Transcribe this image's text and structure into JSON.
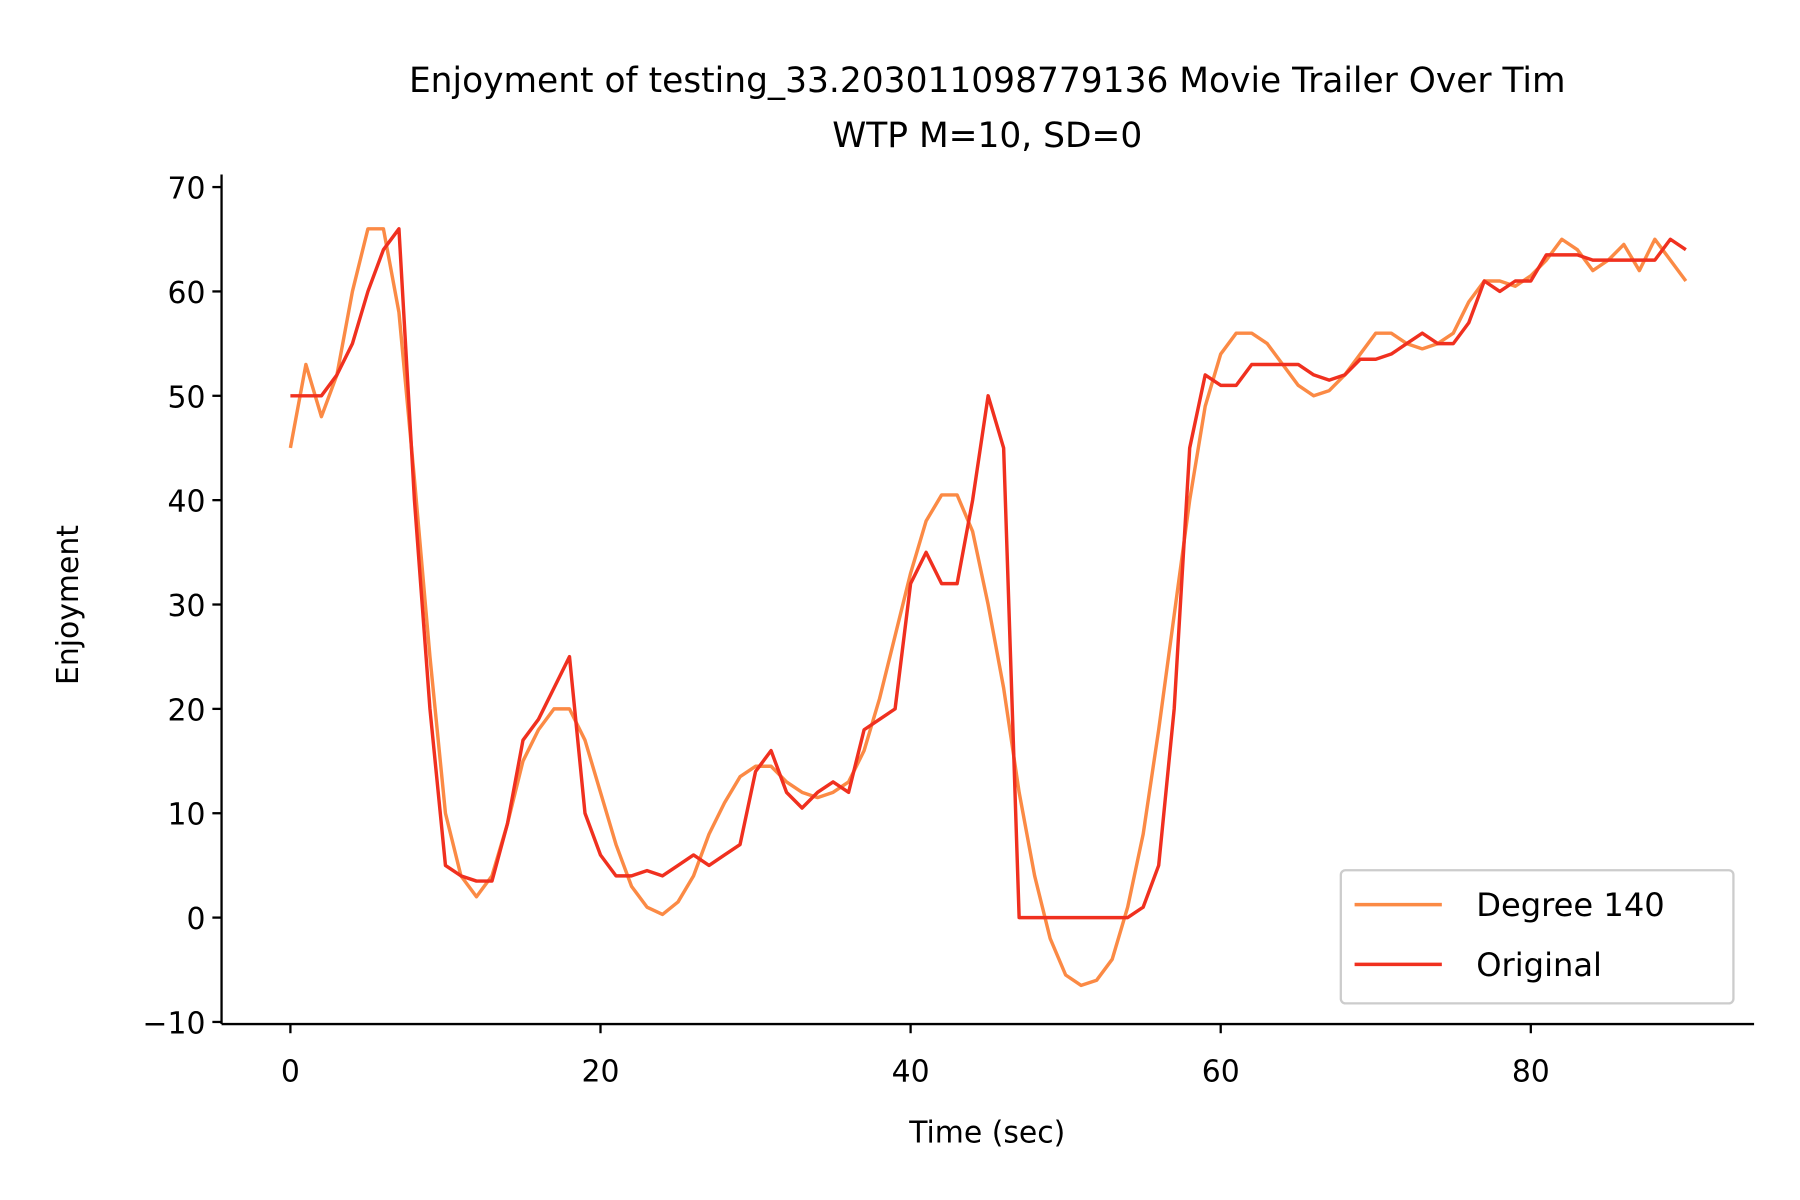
{
  "chart_data": {
    "type": "line",
    "title": "Enjoyment of testing_33.203011098779136 Movie Trailer Over Tim",
    "subtitle": "WTP M=10, SD=0",
    "xlabel": "Time (sec)",
    "ylabel": "Enjoyment",
    "x": [
      0,
      1,
      2,
      3,
      4,
      5,
      6,
      7,
      8,
      9,
      10,
      11,
      12,
      13,
      14,
      15,
      16,
      17,
      18,
      19,
      20,
      21,
      22,
      23,
      24,
      25,
      26,
      27,
      28,
      29,
      30,
      31,
      32,
      33,
      34,
      35,
      36,
      37,
      38,
      39,
      40,
      41,
      42,
      43,
      44,
      45,
      46,
      47,
      48,
      49,
      50,
      51,
      52,
      53,
      54,
      55,
      56,
      57,
      58,
      59,
      60,
      61,
      62,
      63,
      64,
      65,
      66,
      67,
      68,
      69,
      70,
      71,
      72,
      73,
      74,
      75,
      76,
      77,
      78,
      79,
      80,
      81,
      82,
      83,
      84,
      85,
      86,
      87,
      88,
      89,
      90
    ],
    "series": [
      {
        "name": "Degree 140",
        "color": "#fb8a45",
        "values": [
          45,
          53,
          48,
          52,
          60,
          66,
          66,
          58,
          42,
          25,
          10,
          4,
          2,
          4,
          9,
          15,
          18,
          20,
          20,
          17,
          12,
          7,
          3,
          1,
          0.3,
          1.5,
          4,
          8,
          11,
          13.5,
          14.5,
          14.5,
          13,
          12,
          11.5,
          12,
          13,
          16,
          21,
          27,
          33,
          38,
          40.5,
          40.5,
          37,
          30,
          22,
          12,
          4,
          -2,
          -5.5,
          -6.5,
          -6,
          -4,
          1,
          8,
          18,
          29,
          40,
          49,
          54,
          56,
          56,
          55,
          53,
          51,
          50,
          50.5,
          52,
          54,
          56,
          56,
          55,
          54.5,
          55,
          56,
          59,
          61,
          61,
          60.5,
          61.5,
          63,
          65,
          64,
          62,
          63,
          64.5,
          62,
          65,
          63,
          61
        ]
      },
      {
        "name": "Original",
        "color": "#f0301f",
        "values": [
          50,
          50,
          50,
          52,
          55,
          60,
          64,
          66,
          40,
          20,
          5,
          4,
          3.5,
          3.5,
          9,
          17,
          19,
          22,
          25,
          10,
          6,
          4,
          4,
          4.5,
          4,
          5,
          6,
          5,
          6,
          7,
          14,
          16,
          12,
          10.5,
          12,
          13,
          12,
          18,
          19,
          20,
          32,
          35,
          32,
          32,
          40,
          50,
          45,
          0,
          0,
          0,
          0,
          0,
          0,
          0,
          0,
          1,
          5,
          20,
          45,
          52,
          51,
          51,
          53,
          53,
          53,
          53,
          52,
          51.5,
          52,
          53.5,
          53.5,
          54,
          55,
          56,
          55,
          55,
          57,
          61,
          60,
          61,
          61,
          63.5,
          63.5,
          63.5,
          63,
          63,
          63,
          63,
          63,
          65,
          64
        ]
      }
    ],
    "xlim": [
      -4.44,
      94.4
    ],
    "ylim": [
      -10.2,
      71.2
    ],
    "xticks": [
      0,
      20,
      40,
      60,
      80
    ],
    "yticks": [
      {
        "value": -10,
        "label": "−10"
      },
      0,
      10,
      20,
      30,
      40,
      50,
      60,
      70
    ],
    "legend": "lower right"
  }
}
